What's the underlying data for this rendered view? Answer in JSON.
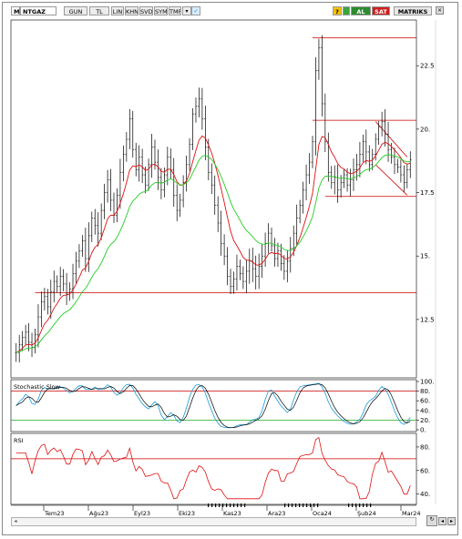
{
  "toolbar": {
    "symbol": "M",
    "symbol_name": "NTGAZ",
    "period": "GUN",
    "currency": "TL",
    "buttons": [
      "LIN",
      "KHN",
      "SVD",
      "SYM",
      "TMP"
    ],
    "question": "?",
    "al": "AL",
    "sat": "SAT",
    "brand": "MATRIKS"
  },
  "chart_data": [
    {
      "type": "line",
      "panel": "price",
      "y_ticks": [
        "22.5",
        "20.",
        "17.5",
        "15.",
        "12.5"
      ],
      "y_tick_values": [
        22.5,
        20,
        17.5,
        15,
        12.5
      ],
      "ylim": [
        10.2,
        24.3
      ],
      "x_ticks": [
        "Tem23",
        "Ağu23",
        "Eyl23",
        "Eki23",
        "Kas23",
        "Ara23",
        "Oca24",
        "Şub24",
        "Mar24"
      ],
      "series": [
        {
          "kind": "ohlc-bars",
          "color": "#000000",
          "values": [
            11.2,
            11.5,
            11.8,
            12.0,
            11.6,
            11.4,
            11.9,
            12.6,
            13.2,
            13.4,
            13.0,
            13.6,
            14.0,
            13.8,
            14.2,
            13.9,
            13.5,
            13.7,
            14.3,
            14.8,
            15.2,
            15.6,
            14.9,
            15.8,
            16.5,
            16.2,
            15.9,
            16.8,
            17.5,
            18.0,
            17.2,
            16.6,
            17.4,
            18.3,
            19.0,
            19.6,
            20.4,
            19.2,
            18.4,
            18.9,
            18.2,
            17.8,
            18.6,
            19.3,
            18.7,
            18.1,
            17.6,
            18.2,
            18.9,
            18.4,
            17.4,
            16.8,
            17.2,
            17.9,
            18.6,
            19.4,
            20.6,
            20.9,
            21.2,
            20.4,
            19.3,
            18.3,
            17.8,
            17.0,
            16.3,
            15.5,
            15.0,
            14.2,
            13.8,
            14.1,
            14.6,
            14.3,
            14.0,
            14.4,
            14.8,
            14.5,
            14.2,
            14.6,
            15.0,
            15.5,
            15.9,
            15.4,
            14.9,
            15.2,
            14.7,
            14.4,
            14.8,
            15.3,
            15.9,
            16.5,
            17.0,
            17.6,
            18.2,
            18.7,
            19.5,
            22.3,
            23.2,
            21.0,
            19.5,
            18.3,
            17.9,
            18.1,
            17.6,
            17.9,
            18.2,
            17.8,
            18.0,
            18.4,
            18.6,
            19.0,
            19.5,
            19.1,
            18.6,
            19.0,
            19.6,
            20.1,
            20.3,
            19.8,
            19.2,
            18.9,
            18.6,
            18.5,
            18.2,
            17.9,
            18.4,
            18.8
          ]
        },
        {
          "kind": "moving-average",
          "color": "#dd1111"
        },
        {
          "kind": "moving-average",
          "color": "#22cc22"
        }
      ],
      "horizontal_lines": [
        {
          "y": 23.6,
          "color": "#cc0000"
        },
        {
          "y": 20.35,
          "color": "#cc0000"
        },
        {
          "y": 17.35,
          "color": "#cc0000"
        },
        {
          "y": 13.55,
          "color": "#cc0000"
        }
      ]
    },
    {
      "type": "line",
      "panel": "stochastic",
      "title": "Stochastic Slow",
      "y_ticks": [
        "100.",
        "80.",
        "60.",
        "40.",
        "20.",
        "0."
      ],
      "y_tick_values": [
        100,
        80,
        60,
        40,
        20,
        0
      ],
      "ylim": [
        0,
        100
      ],
      "levels": [
        80,
        20
      ],
      "series": [
        {
          "kind": "k",
          "color": "#1a9bd8"
        },
        {
          "kind": "d",
          "color": "#000000"
        }
      ]
    },
    {
      "type": "line",
      "panel": "rsi",
      "title": "RSI",
      "y_ticks": [
        "80.",
        "60.",
        "40."
      ],
      "y_tick_values": [
        80,
        60,
        40
      ],
      "ylim": [
        32,
        90
      ],
      "levels": [
        70
      ],
      "series": [
        {
          "kind": "rsi",
          "color": "#dd1111"
        }
      ]
    }
  ]
}
